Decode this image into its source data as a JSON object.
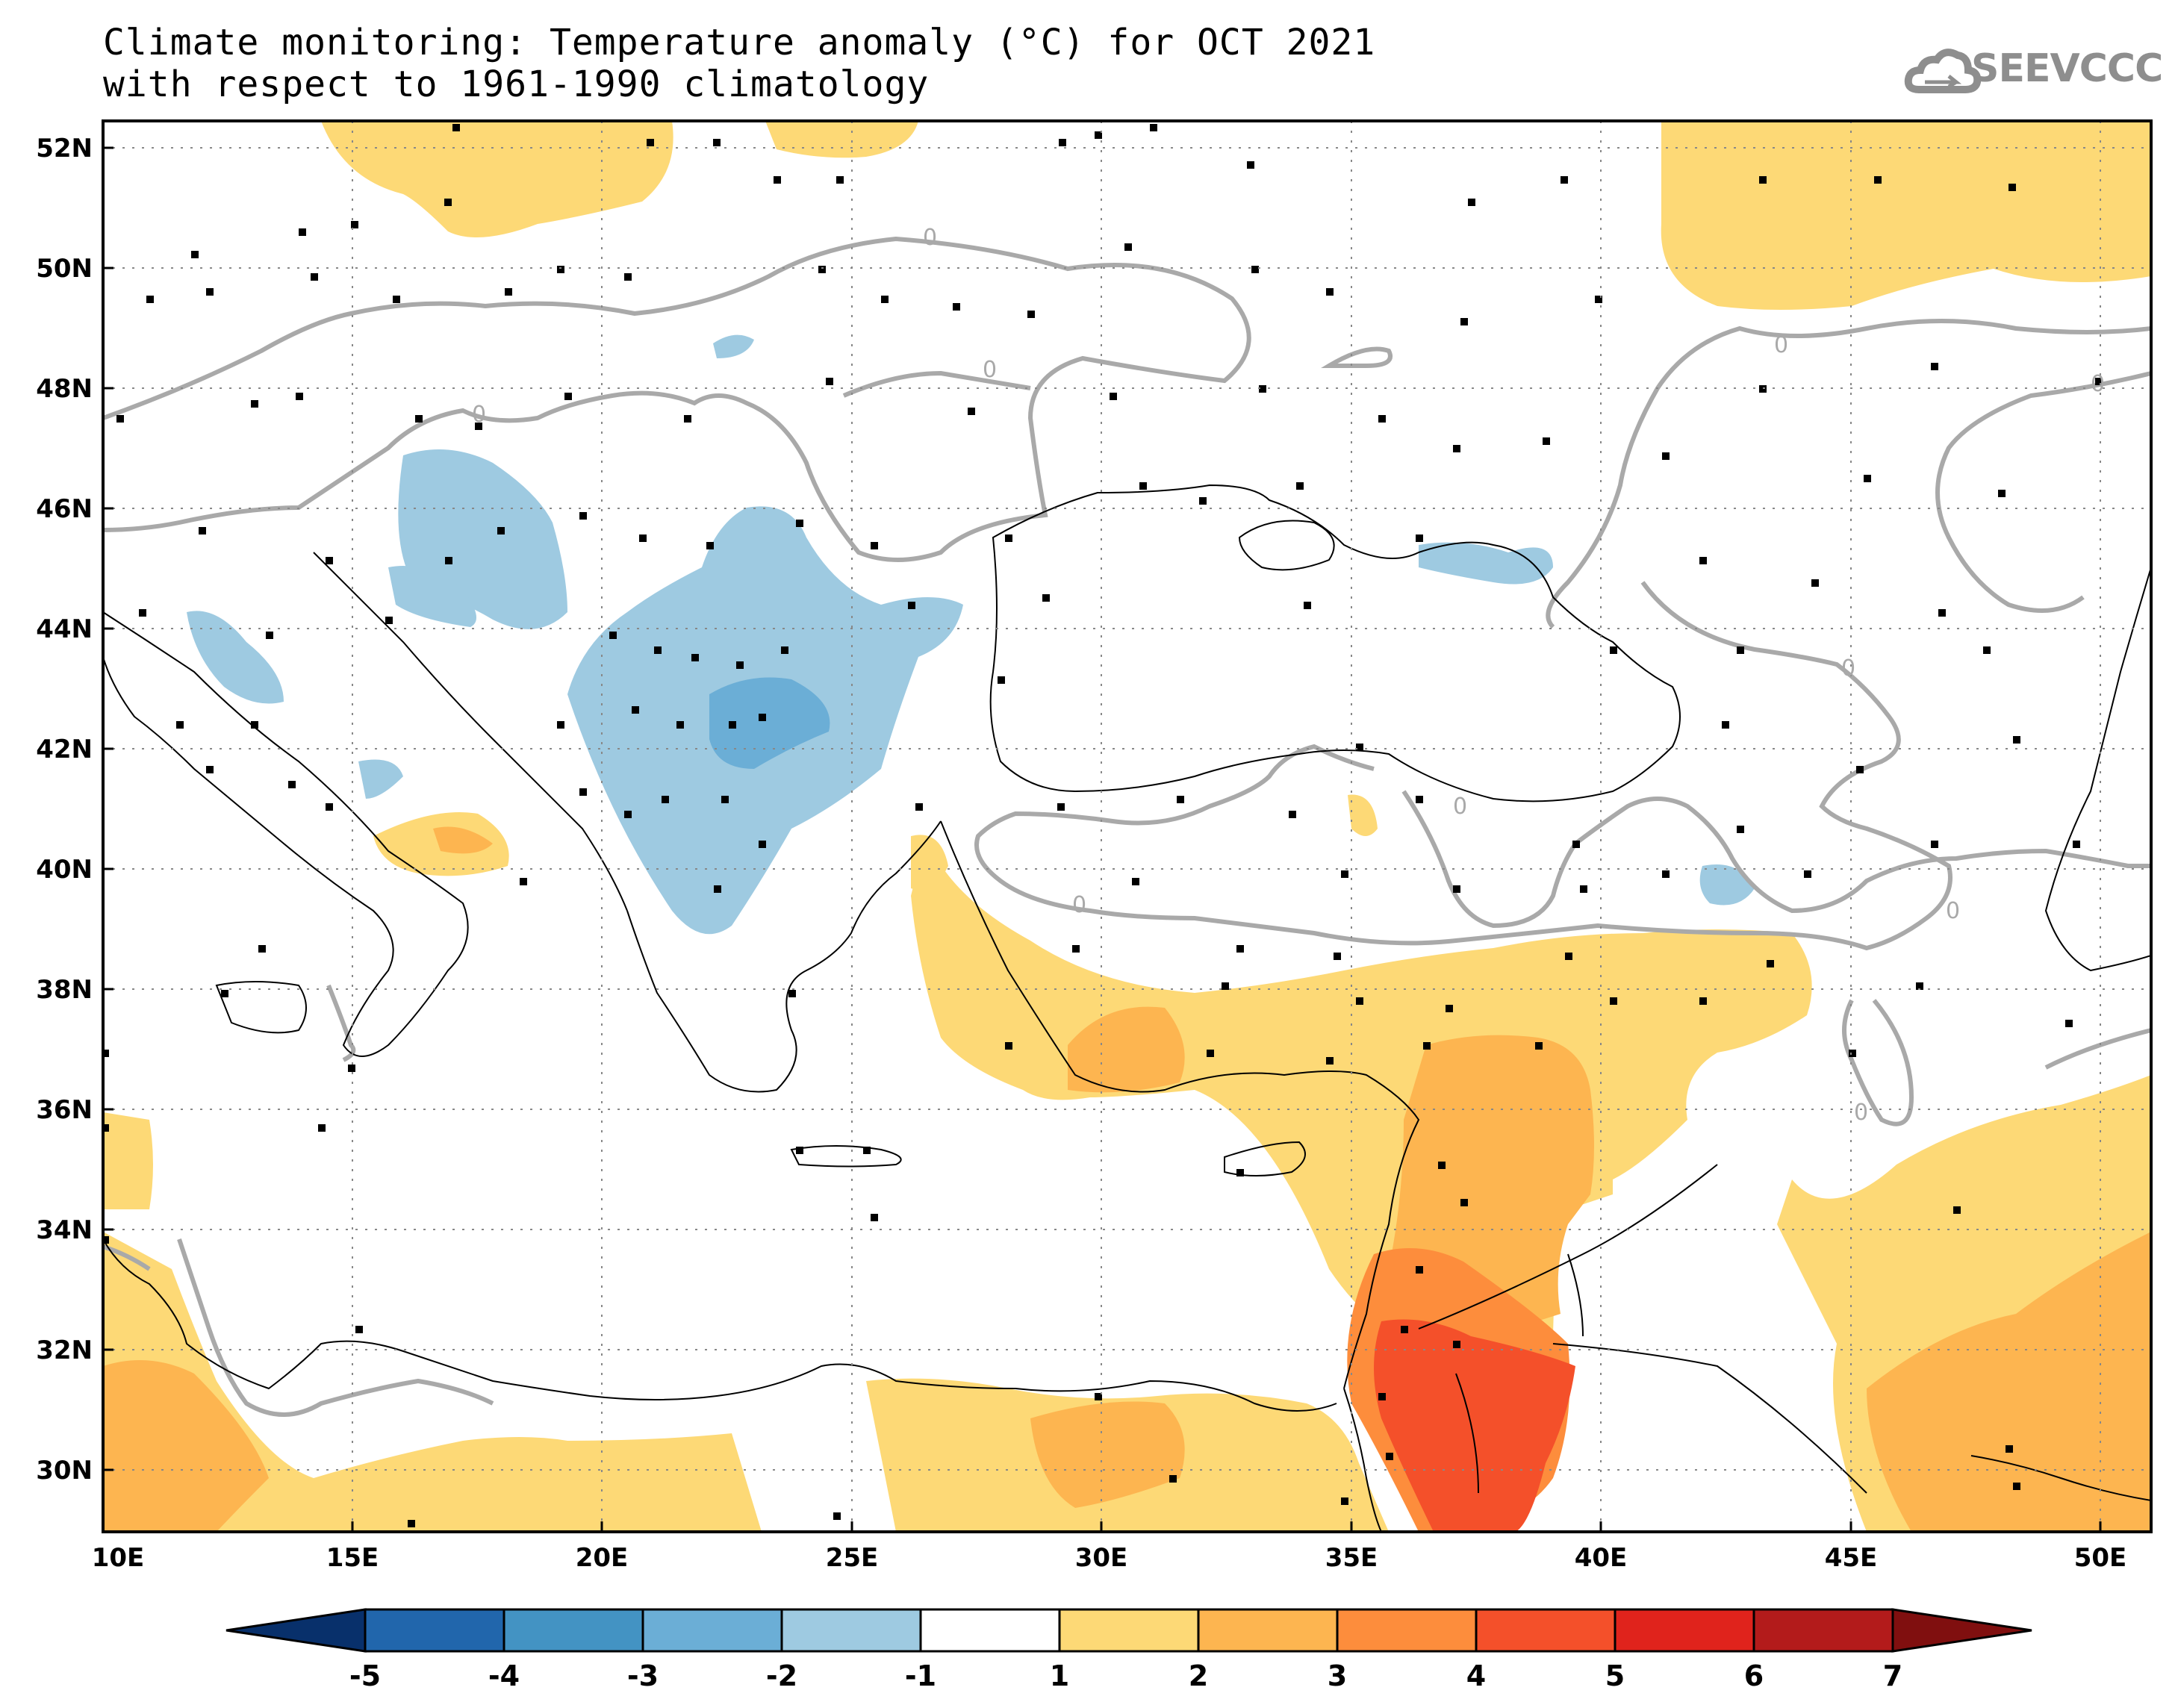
{
  "title_line1": "Climate monitoring: Temperature anomaly (°C) for OCT 2021",
  "title_line2": "with respect to 1961-1990 climatology",
  "logo_text": "SEEVCCC",
  "logo_icon": "cloud-icon",
  "map": {
    "lon_range": [
      10,
      51
    ],
    "lat_range": [
      29,
      52.5
    ],
    "lat_ticks": [
      "52N",
      "50N",
      "48N",
      "46N",
      "44N",
      "42N",
      "40N",
      "38N",
      "36N",
      "34N",
      "32N",
      "30N"
    ],
    "lon_ticks": [
      "10E",
      "15E",
      "20E",
      "25E",
      "30E",
      "35E",
      "40E",
      "45E",
      "50E"
    ],
    "contour_label": "0"
  },
  "colorbar": {
    "labels": [
      "-5",
      "-4",
      "-3",
      "-2",
      "-1",
      "1",
      "2",
      "3",
      "4",
      "5",
      "6",
      "7"
    ],
    "colors": [
      "#08306b",
      "#2166ac",
      "#4393c3",
      "#6baed6",
      "#9ecae1",
      "#ffffff",
      "#fdd976",
      "#fdb550",
      "#fd8d3c",
      "#f4502a",
      "#e0231c",
      "#b31b1b",
      "#800f0f"
    ]
  },
  "colors": {
    "warm1": "#fdd976",
    "warm2": "#fdb550",
    "warm3": "#fd8d3c",
    "warm4": "#f4502a",
    "cool1": "#9ecae1",
    "cool2": "#6baed6",
    "contour": "#a9a9a9",
    "grid": "#888888"
  }
}
